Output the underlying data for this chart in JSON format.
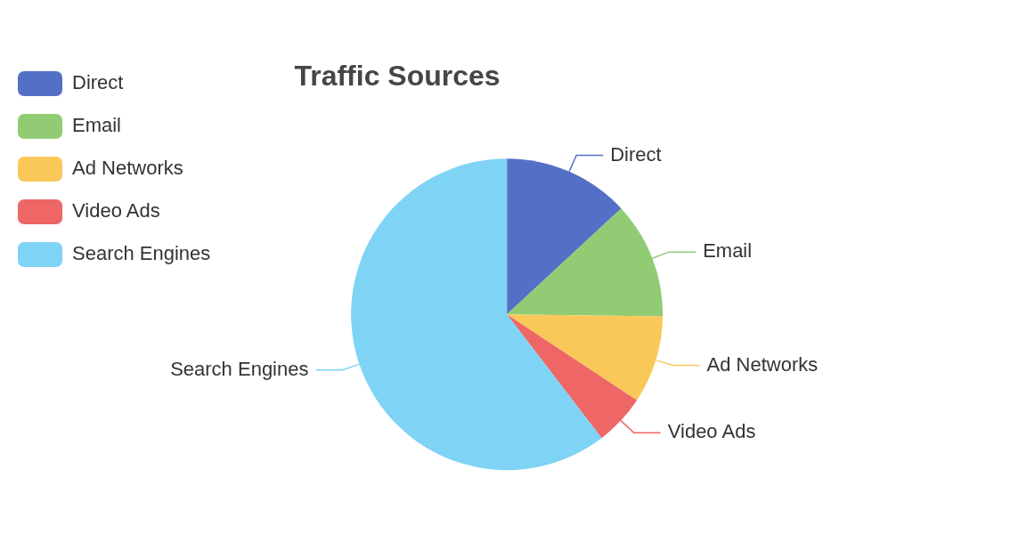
{
  "chart_data": {
    "type": "pie",
    "title": "Traffic Sources",
    "categories": [
      "Direct",
      "Email",
      "Ad Networks",
      "Video Ads",
      "Search Engines"
    ],
    "values": [
      13.1,
      12.1,
      9.1,
      5.3,
      60.4
    ],
    "colors": [
      "#5470c6",
      "#91cc75",
      "#fac858",
      "#ee6666",
      "#7fd3f5"
    ],
    "legend": "top left"
  }
}
